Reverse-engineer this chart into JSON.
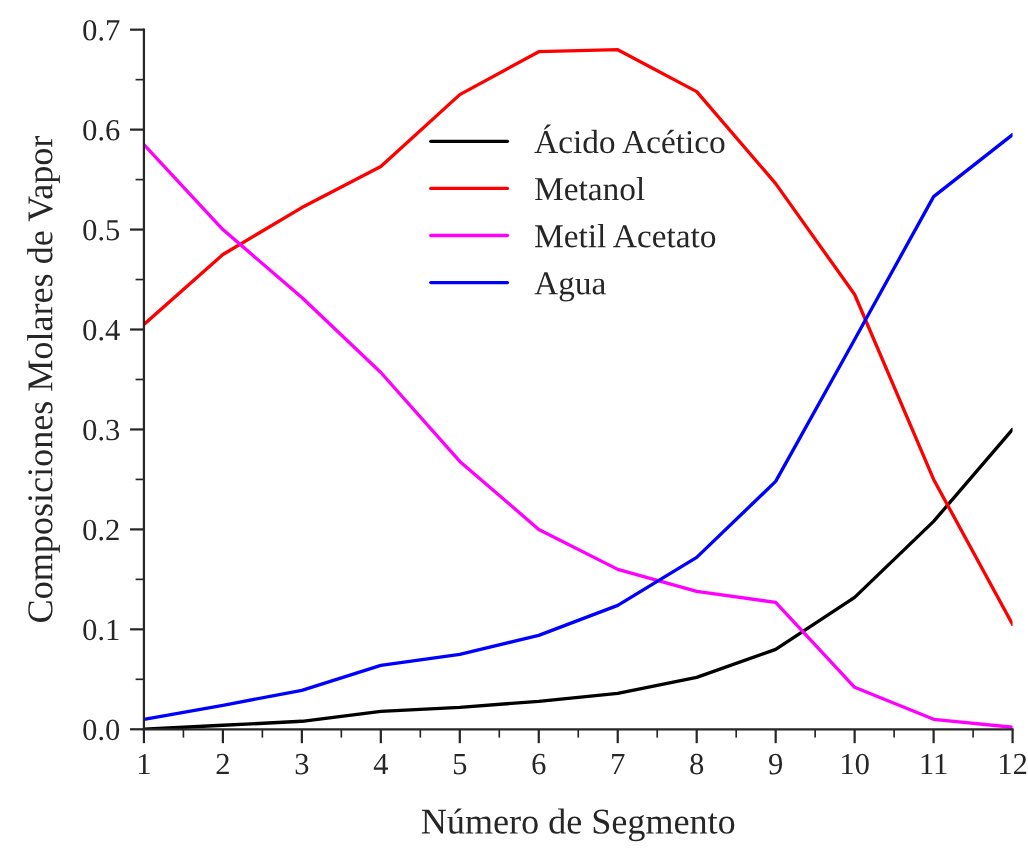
{
  "chart_data": {
    "type": "line",
    "xlabel": "Número de Segmento",
    "ylabel": "Composiciones Molares de Vapor",
    "x": [
      1,
      2,
      3,
      4,
      5,
      6,
      7,
      8,
      9,
      10,
      11,
      12
    ],
    "series": [
      {
        "name": "Ácido Acético",
        "color": "#000000",
        "values": [
          0.0,
          0.004,
          0.008,
          0.018,
          0.022,
          0.028,
          0.036,
          0.052,
          0.08,
          0.132,
          0.208,
          0.3
        ]
      },
      {
        "name": "Metanol",
        "color": "#ff0000",
        "values": [
          0.405,
          0.475,
          0.522,
          0.563,
          0.635,
          0.678,
          0.68,
          0.638,
          0.546,
          0.435,
          0.25,
          0.105
        ]
      },
      {
        "name": "Metil Acetato",
        "color": "#ff00ff",
        "values": [
          0.585,
          0.5,
          0.432,
          0.357,
          0.268,
          0.2,
          0.16,
          0.138,
          0.127,
          0.042,
          0.01,
          0.002
        ]
      },
      {
        "name": "Agua",
        "color": "#0000ff",
        "values": [
          0.01,
          0.024,
          0.039,
          0.064,
          0.075,
          0.094,
          0.124,
          0.172,
          0.248,
          0.39,
          0.533,
          0.595
        ]
      }
    ],
    "xlim": [
      1,
      12
    ],
    "xticks": [
      1,
      2,
      3,
      4,
      5,
      6,
      7,
      8,
      9,
      10,
      11,
      12
    ],
    "ylim": [
      0,
      0.7
    ],
    "yticks": [
      {
        "value": 0,
        "label": "0.0"
      },
      0.1,
      0.2,
      0.3,
      0.4,
      0.5,
      0.6,
      0.7
    ],
    "grid": false,
    "legend": "top",
    "marker": "none",
    "line_style": "solid"
  }
}
